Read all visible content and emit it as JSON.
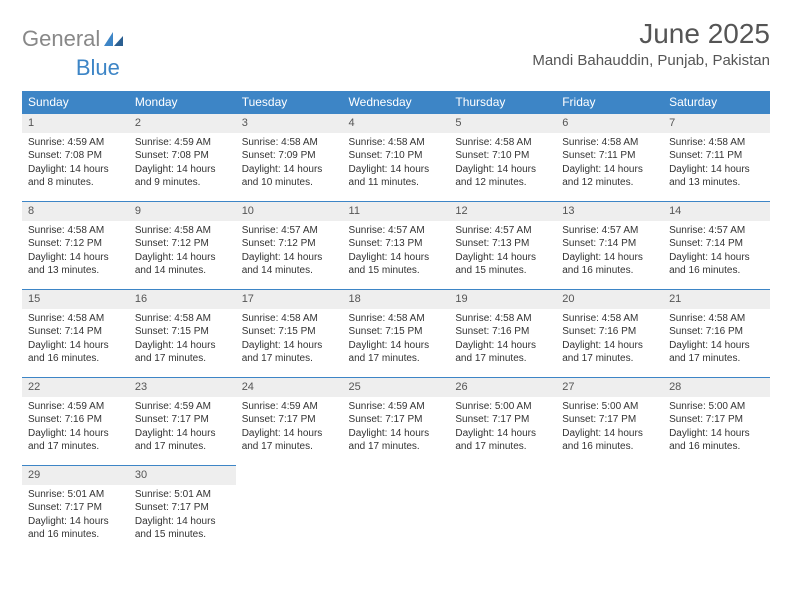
{
  "logo": {
    "word1": "General",
    "word2": "Blue"
  },
  "title": "June 2025",
  "location": "Mandi Bahauddin, Punjab, Pakistan",
  "colors": {
    "header_bg": "#3d85c6",
    "header_text": "#ffffff",
    "daynum_bg": "#eeeeee",
    "border": "#3d85c6",
    "logo_gray": "#888888",
    "logo_blue": "#3d85c6",
    "text": "#333333",
    "bg": "#ffffff"
  },
  "day_labels": [
    "Sunday",
    "Monday",
    "Tuesday",
    "Wednesday",
    "Thursday",
    "Friday",
    "Saturday"
  ],
  "weeks": [
    [
      {
        "n": "1",
        "sr": "Sunrise: 4:59 AM",
        "ss": "Sunset: 7:08 PM",
        "dl": "Daylight: 14 hours and 8 minutes."
      },
      {
        "n": "2",
        "sr": "Sunrise: 4:59 AM",
        "ss": "Sunset: 7:08 PM",
        "dl": "Daylight: 14 hours and 9 minutes."
      },
      {
        "n": "3",
        "sr": "Sunrise: 4:58 AM",
        "ss": "Sunset: 7:09 PM",
        "dl": "Daylight: 14 hours and 10 minutes."
      },
      {
        "n": "4",
        "sr": "Sunrise: 4:58 AM",
        "ss": "Sunset: 7:10 PM",
        "dl": "Daylight: 14 hours and 11 minutes."
      },
      {
        "n": "5",
        "sr": "Sunrise: 4:58 AM",
        "ss": "Sunset: 7:10 PM",
        "dl": "Daylight: 14 hours and 12 minutes."
      },
      {
        "n": "6",
        "sr": "Sunrise: 4:58 AM",
        "ss": "Sunset: 7:11 PM",
        "dl": "Daylight: 14 hours and 12 minutes."
      },
      {
        "n": "7",
        "sr": "Sunrise: 4:58 AM",
        "ss": "Sunset: 7:11 PM",
        "dl": "Daylight: 14 hours and 13 minutes."
      }
    ],
    [
      {
        "n": "8",
        "sr": "Sunrise: 4:58 AM",
        "ss": "Sunset: 7:12 PM",
        "dl": "Daylight: 14 hours and 13 minutes."
      },
      {
        "n": "9",
        "sr": "Sunrise: 4:58 AM",
        "ss": "Sunset: 7:12 PM",
        "dl": "Daylight: 14 hours and 14 minutes."
      },
      {
        "n": "10",
        "sr": "Sunrise: 4:57 AM",
        "ss": "Sunset: 7:12 PM",
        "dl": "Daylight: 14 hours and 14 minutes."
      },
      {
        "n": "11",
        "sr": "Sunrise: 4:57 AM",
        "ss": "Sunset: 7:13 PM",
        "dl": "Daylight: 14 hours and 15 minutes."
      },
      {
        "n": "12",
        "sr": "Sunrise: 4:57 AM",
        "ss": "Sunset: 7:13 PM",
        "dl": "Daylight: 14 hours and 15 minutes."
      },
      {
        "n": "13",
        "sr": "Sunrise: 4:57 AM",
        "ss": "Sunset: 7:14 PM",
        "dl": "Daylight: 14 hours and 16 minutes."
      },
      {
        "n": "14",
        "sr": "Sunrise: 4:57 AM",
        "ss": "Sunset: 7:14 PM",
        "dl": "Daylight: 14 hours and 16 minutes."
      }
    ],
    [
      {
        "n": "15",
        "sr": "Sunrise: 4:58 AM",
        "ss": "Sunset: 7:14 PM",
        "dl": "Daylight: 14 hours and 16 minutes."
      },
      {
        "n": "16",
        "sr": "Sunrise: 4:58 AM",
        "ss": "Sunset: 7:15 PM",
        "dl": "Daylight: 14 hours and 17 minutes."
      },
      {
        "n": "17",
        "sr": "Sunrise: 4:58 AM",
        "ss": "Sunset: 7:15 PM",
        "dl": "Daylight: 14 hours and 17 minutes."
      },
      {
        "n": "18",
        "sr": "Sunrise: 4:58 AM",
        "ss": "Sunset: 7:15 PM",
        "dl": "Daylight: 14 hours and 17 minutes."
      },
      {
        "n": "19",
        "sr": "Sunrise: 4:58 AM",
        "ss": "Sunset: 7:16 PM",
        "dl": "Daylight: 14 hours and 17 minutes."
      },
      {
        "n": "20",
        "sr": "Sunrise: 4:58 AM",
        "ss": "Sunset: 7:16 PM",
        "dl": "Daylight: 14 hours and 17 minutes."
      },
      {
        "n": "21",
        "sr": "Sunrise: 4:58 AM",
        "ss": "Sunset: 7:16 PM",
        "dl": "Daylight: 14 hours and 17 minutes."
      }
    ],
    [
      {
        "n": "22",
        "sr": "Sunrise: 4:59 AM",
        "ss": "Sunset: 7:16 PM",
        "dl": "Daylight: 14 hours and 17 minutes."
      },
      {
        "n": "23",
        "sr": "Sunrise: 4:59 AM",
        "ss": "Sunset: 7:17 PM",
        "dl": "Daylight: 14 hours and 17 minutes."
      },
      {
        "n": "24",
        "sr": "Sunrise: 4:59 AM",
        "ss": "Sunset: 7:17 PM",
        "dl": "Daylight: 14 hours and 17 minutes."
      },
      {
        "n": "25",
        "sr": "Sunrise: 4:59 AM",
        "ss": "Sunset: 7:17 PM",
        "dl": "Daylight: 14 hours and 17 minutes."
      },
      {
        "n": "26",
        "sr": "Sunrise: 5:00 AM",
        "ss": "Sunset: 7:17 PM",
        "dl": "Daylight: 14 hours and 17 minutes."
      },
      {
        "n": "27",
        "sr": "Sunrise: 5:00 AM",
        "ss": "Sunset: 7:17 PM",
        "dl": "Daylight: 14 hours and 16 minutes."
      },
      {
        "n": "28",
        "sr": "Sunrise: 5:00 AM",
        "ss": "Sunset: 7:17 PM",
        "dl": "Daylight: 14 hours and 16 minutes."
      }
    ],
    [
      {
        "n": "29",
        "sr": "Sunrise: 5:01 AM",
        "ss": "Sunset: 7:17 PM",
        "dl": "Daylight: 14 hours and 16 minutes."
      },
      {
        "n": "30",
        "sr": "Sunrise: 5:01 AM",
        "ss": "Sunset: 7:17 PM",
        "dl": "Daylight: 14 hours and 15 minutes."
      },
      null,
      null,
      null,
      null,
      null
    ]
  ]
}
